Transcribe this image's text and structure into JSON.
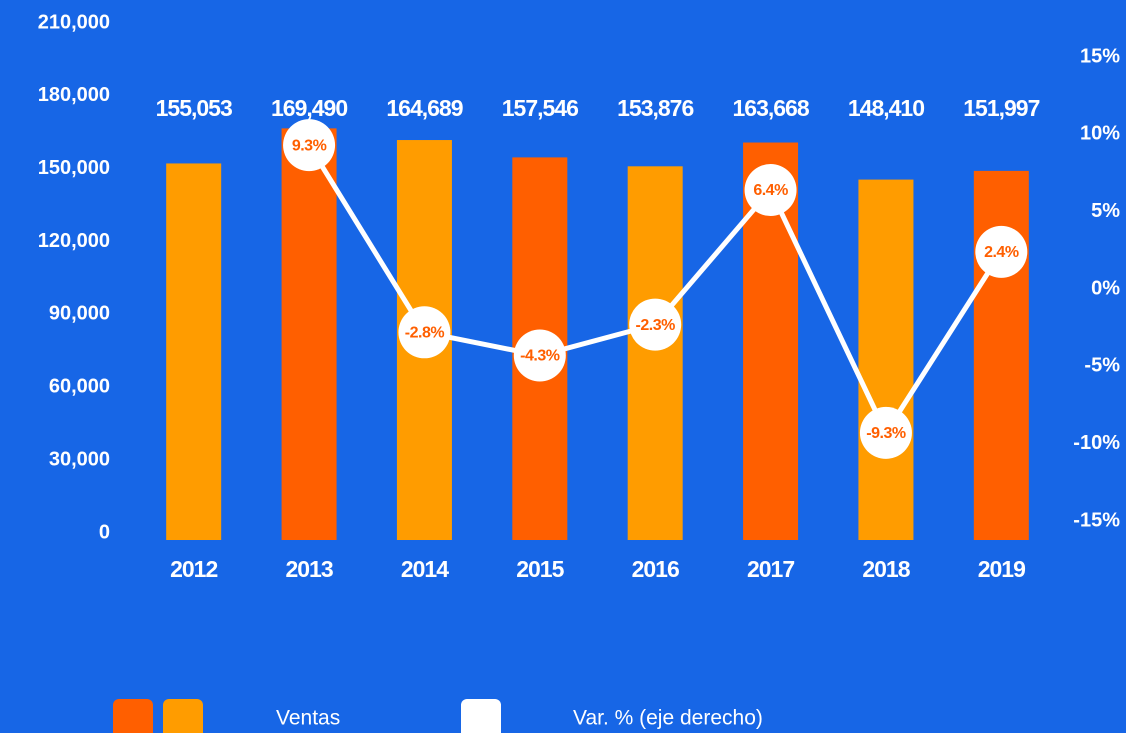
{
  "chart_data": {
    "type": "bar-line",
    "categories": [
      "2012",
      "2013",
      "2014",
      "2015",
      "2016",
      "2017",
      "2018",
      "2019"
    ],
    "series": [
      {
        "name": "Ventas",
        "colors": [
          "#ff9c00",
          "#ff5f00",
          "#ff9c00",
          "#ff5f00",
          "#ff9c00",
          "#ff5f00",
          "#ff9c00",
          "#ff5f00"
        ],
        "values": [
          155053,
          169490,
          164689,
          157546,
          153876,
          163668,
          148410,
          151997
        ],
        "value_labels": [
          "155,053",
          "169,490",
          "164,689",
          "157,546",
          "153,876",
          "163,668",
          "148,410",
          "151,997"
        ]
      },
      {
        "name": "Var. % (eje derecho)",
        "color": "#ffffff",
        "axis": "y2",
        "values": [
          null,
          9.3,
          -2.8,
          -4.3,
          -2.3,
          6.4,
          -9.3,
          2.4
        ],
        "value_labels": [
          null,
          "9.3%",
          "-2.8%",
          "-4.3%",
          "-2.3%",
          "6.4%",
          "-9.3%",
          "2.4%"
        ]
      }
    ],
    "ylim": [
      0,
      210000
    ],
    "yticks": [
      0,
      {
        "value": 30000,
        "label": "30,000"
      },
      {
        "value": 60000,
        "label": "60,000"
      },
      {
        "value": 90000,
        "label": "90,000"
      },
      {
        "value": 120000,
        "label": "120,000"
      },
      {
        "value": 150000,
        "label": "150,000"
      },
      {
        "value": 180000,
        "label": "180,000"
      },
      {
        "value": 210000,
        "label": "210,000"
      }
    ],
    "y2lim": [
      -15,
      15
    ],
    "y2ticks": [
      {
        "value": -15,
        "label": "-15%"
      },
      {
        "value": -10,
        "label": "-10%"
      },
      {
        "value": -5,
        "label": "-5%"
      },
      {
        "value": 0,
        "label": "0%"
      },
      {
        "value": 5,
        "label": "5%"
      },
      {
        "value": 10,
        "label": "10%"
      },
      {
        "value": 15,
        "label": "15%"
      }
    ],
    "grid": false
  }
}
